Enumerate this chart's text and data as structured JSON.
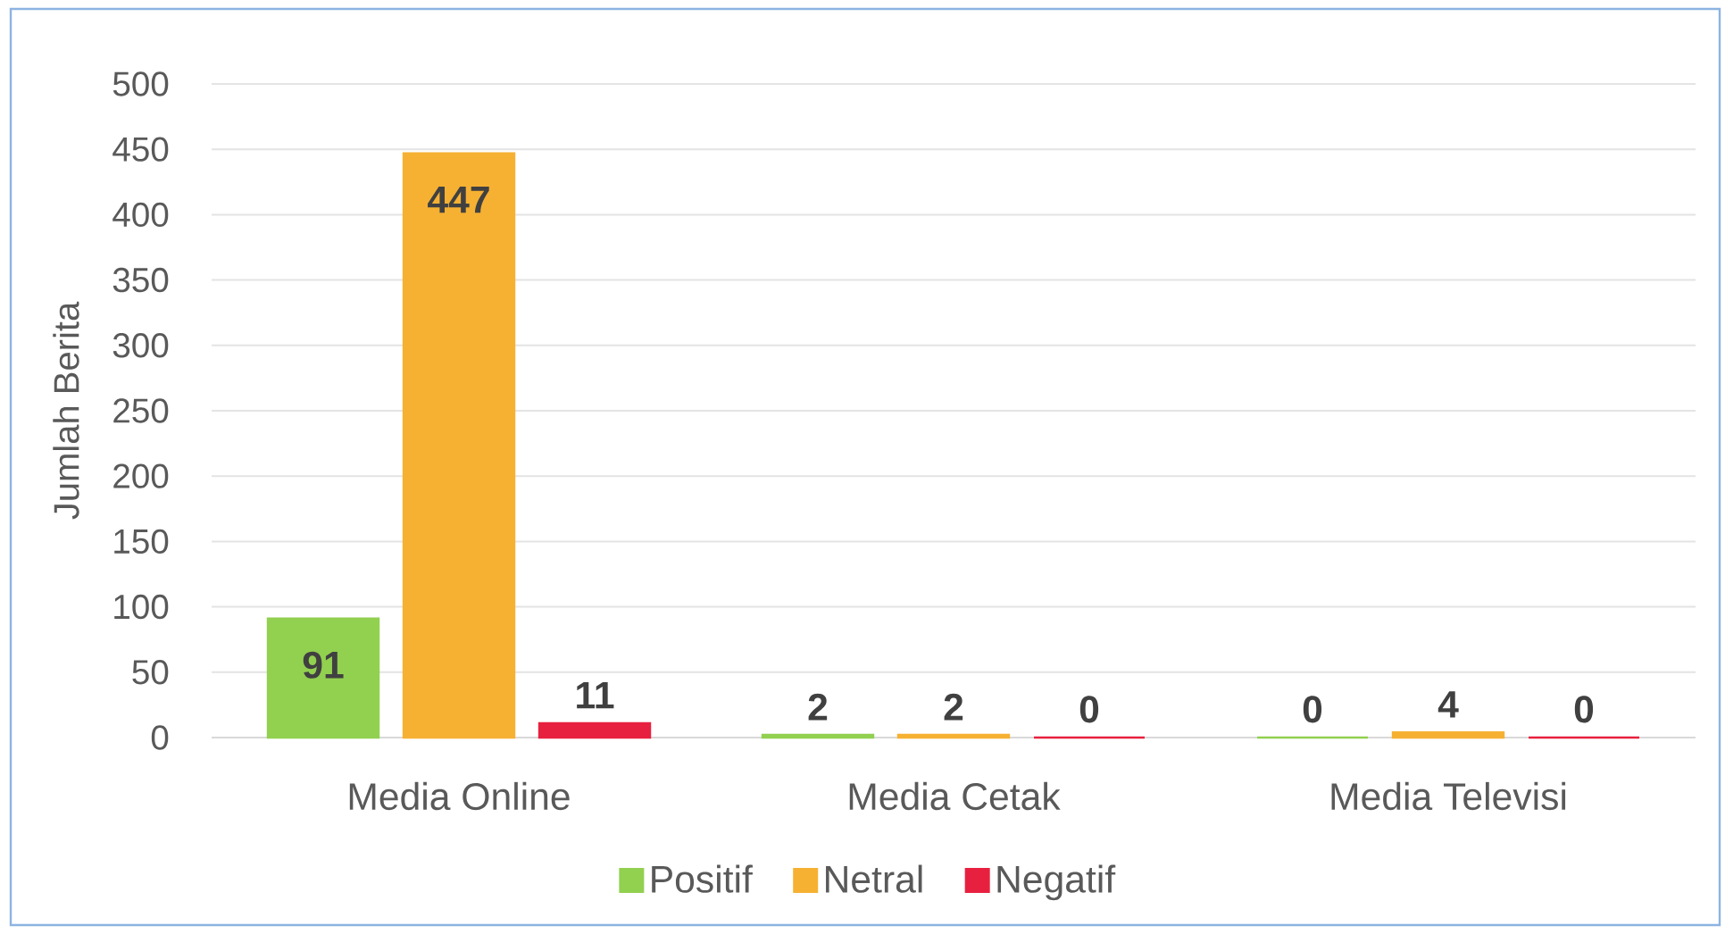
{
  "chart_data": {
    "type": "bar",
    "ylabel": "Jumlah Berita",
    "categories": [
      "Media Online",
      "Media Cetak",
      "Media Televisi"
    ],
    "series": [
      {
        "name": "Positif",
        "color": "#92d050",
        "values": [
          91,
          2,
          0
        ]
      },
      {
        "name": "Netral",
        "color": "#f6b133",
        "values": [
          447,
          2,
          4
        ]
      },
      {
        "name": "Negatif",
        "color": "#e8203f",
        "values": [
          11,
          0,
          0
        ]
      }
    ],
    "ylim": [
      0,
      500
    ],
    "yticks": [
      0,
      50,
      100,
      150,
      200,
      250,
      300,
      350,
      400,
      450,
      500
    ],
    "grid": "y",
    "legend": "bottom",
    "data_labels": true
  }
}
